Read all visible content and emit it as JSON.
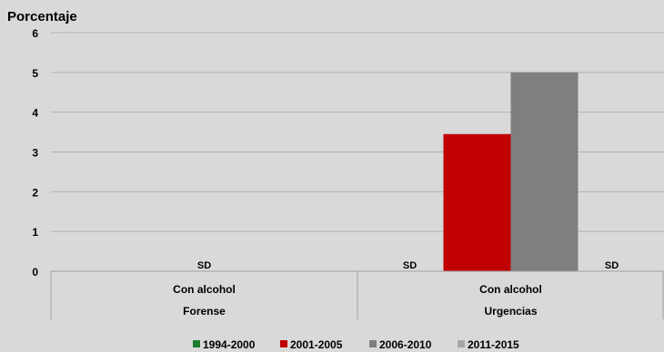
{
  "chart_data": {
    "type": "bar",
    "ylabel": "Porcentaje",
    "ylim": [
      0,
      6
    ],
    "yticks": [
      "0",
      "1",
      "2",
      "3",
      "4",
      "5",
      "6"
    ],
    "grid": true,
    "legend_position": "bottom",
    "groups": [
      {
        "category": "Con alcohol",
        "group": "Forense"
      },
      {
        "category": "Con alcohol",
        "group": "Urgencias"
      }
    ],
    "series": [
      {
        "name": "1994-2000",
        "color": "#1e7b2d",
        "values": [
          null,
          null
        ]
      },
      {
        "name": "2001-2005",
        "color": "#c00000",
        "values": [
          null,
          3.45
        ]
      },
      {
        "name": "2006-2010",
        "color": "#7f7f7f",
        "values": [
          null,
          5.0
        ]
      },
      {
        "name": "2011-2015",
        "color": "#a6a6a6",
        "values": [
          null,
          null
        ]
      }
    ],
    "annotations": [
      {
        "text": "SD",
        "group_index": 0,
        "series_index": 1.5
      },
      {
        "text": "SD",
        "group_index": 1,
        "series_index": 0
      },
      {
        "text": "SD",
        "group_index": 1,
        "series_index": 3
      }
    ]
  }
}
